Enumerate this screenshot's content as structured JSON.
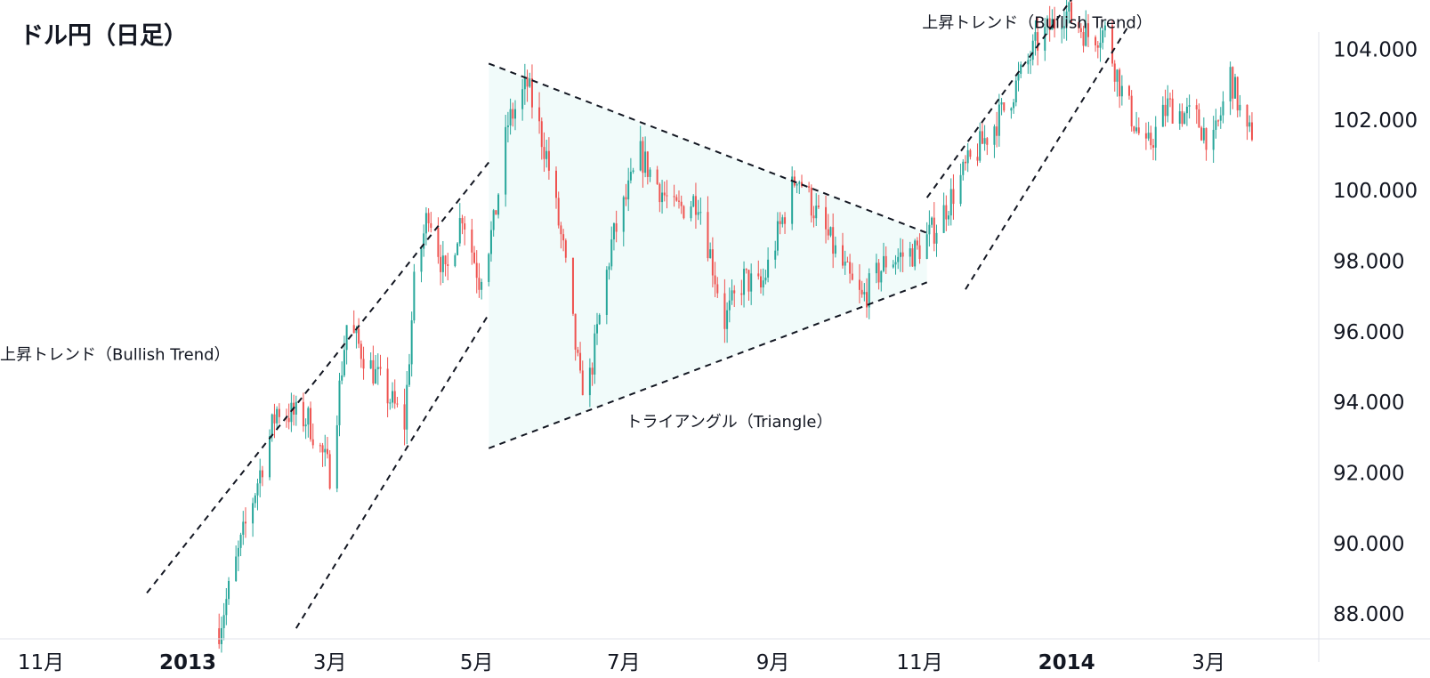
{
  "chart_data": {
    "type": "candlestick",
    "title": "ドル円（日足）",
    "colors": {
      "up": "#26a69a",
      "down": "#ef5350",
      "triangle_fill": "#e0f7f4",
      "line": "#131722",
      "axis": "#e0e3eb"
    },
    "y_axis": {
      "min": 87.3,
      "max": 105.4,
      "ticks": [
        "104.000",
        "102.000",
        "100.000",
        "98.000",
        "96.000",
        "94.000",
        "92.000",
        "90.000",
        "88.000"
      ],
      "tick_values": [
        104,
        102,
        100,
        98,
        96,
        94,
        92,
        90,
        88
      ]
    },
    "x_axis": {
      "start": "2012-10-15",
      "end": "2014-04-15",
      "ticks": [
        {
          "label": "11月",
          "date": "2012-11-01",
          "bold": false
        },
        {
          "label": "2013",
          "date": "2013-01-01",
          "bold": true
        },
        {
          "label": "3月",
          "date": "2013-03-01",
          "bold": false
        },
        {
          "label": "5月",
          "date": "2013-05-01",
          "bold": false
        },
        {
          "label": "7月",
          "date": "2013-07-01",
          "bold": false
        },
        {
          "label": "9月",
          "date": "2013-09-01",
          "bold": false
        },
        {
          "label": "11月",
          "date": "2013-11-01",
          "bold": false
        },
        {
          "label": "2014",
          "date": "2014-01-01",
          "bold": true
        },
        {
          "label": "3月",
          "date": "2014-03-01",
          "bold": false
        }
      ]
    },
    "price_path": [
      [
        "2013-01-14",
        87.6
      ],
      [
        "2013-01-25",
        90.5
      ],
      [
        "2013-02-07",
        93.8
      ],
      [
        "2013-02-20",
        93.5
      ],
      [
        "2013-03-01",
        92.0
      ],
      [
        "2013-03-08",
        96.2
      ],
      [
        "2013-03-18",
        95.0
      ],
      [
        "2013-04-01",
        93.4
      ],
      [
        "2013-04-05",
        97.3
      ],
      [
        "2013-04-11",
        99.5
      ],
      [
        "2013-04-18",
        97.5
      ],
      [
        "2013-04-25",
        99.4
      ],
      [
        "2013-05-02",
        97.5
      ],
      [
        "2013-05-08",
        99.0
      ],
      [
        "2013-05-14",
        101.9
      ],
      [
        "2013-05-22",
        103.0
      ],
      [
        "2013-05-30",
        101.0
      ],
      [
        "2013-06-06",
        98.3
      ],
      [
        "2013-06-13",
        94.5
      ],
      [
        "2013-06-17",
        94.7
      ],
      [
        "2013-06-26",
        98.5
      ],
      [
        "2013-07-08",
        101.0
      ],
      [
        "2013-07-22",
        99.4
      ],
      [
        "2013-08-01",
        99.8
      ],
      [
        "2013-08-12",
        96.3
      ],
      [
        "2013-08-20",
        97.5
      ],
      [
        "2013-08-27",
        97.2
      ],
      [
        "2013-09-06",
        99.4
      ],
      [
        "2013-09-11",
        100.5
      ],
      [
        "2013-09-20",
        99.2
      ],
      [
        "2013-10-04",
        97.3
      ],
      [
        "2013-10-08",
        96.9
      ],
      [
        "2013-10-18",
        98.0
      ],
      [
        "2013-10-31",
        98.3
      ],
      [
        "2013-11-08",
        99.0
      ],
      [
        "2013-11-20",
        100.6
      ],
      [
        "2013-12-06",
        102.3
      ],
      [
        "2013-12-20",
        104.2
      ],
      [
        "2013-12-31",
        105.1
      ],
      [
        "2014-01-10",
        104.4
      ],
      [
        "2014-01-17",
        104.5
      ],
      [
        "2014-01-24",
        102.8
      ],
      [
        "2014-02-03",
        101.1
      ],
      [
        "2014-02-12",
        102.4
      ],
      [
        "2014-02-24",
        102.0
      ],
      [
        "2014-03-03",
        101.3
      ],
      [
        "2014-03-10",
        103.3
      ],
      [
        "2014-03-17",
        101.5
      ],
      [
        "2014-03-20",
        101.8
      ]
    ],
    "trendlines": [
      {
        "name": "bullish-channel-1-upper",
        "from": [
          "2012-12-15",
          88.6
        ],
        "to": [
          "2013-05-06",
          100.8
        ]
      },
      {
        "name": "bullish-channel-1-lower",
        "from": [
          "2013-02-15",
          87.6
        ],
        "to": [
          "2013-05-06",
          96.5
        ]
      },
      {
        "name": "triangle-upper",
        "from": [
          "2013-05-06",
          103.6
        ],
        "to": [
          "2013-11-04",
          98.8
        ]
      },
      {
        "name": "triangle-lower",
        "from": [
          "2013-05-06",
          92.7
        ],
        "to": [
          "2013-11-04",
          97.4
        ]
      },
      {
        "name": "bullish-channel-2-upper",
        "from": [
          "2013-11-04",
          99.8
        ],
        "to": [
          "2014-01-05",
          105.6
        ]
      },
      {
        "name": "bullish-channel-2-lower",
        "from": [
          "2013-11-20",
          97.2
        ],
        "to": [
          "2014-01-27",
          104.7
        ]
      }
    ],
    "triangle_area": [
      [
        "2013-05-06",
        103.6
      ],
      [
        "2013-11-04",
        98.8
      ],
      [
        "2013-11-04",
        97.4
      ],
      [
        "2013-05-06",
        92.7
      ]
    ],
    "annotations": [
      {
        "name": "bullish-trend-label-1",
        "text": "上昇トレンド（Bullish Trend）",
        "date": "2012-10-15",
        "price": 95.2
      },
      {
        "name": "triangle-label",
        "text": "トライアングル（Triangle）",
        "date": "2013-07-02",
        "price": 93.3
      },
      {
        "name": "bullish-trend-label-2",
        "text": "上昇トレンド（Bullish Trend）",
        "date": "2013-11-02",
        "price": 104.6
      }
    ]
  }
}
